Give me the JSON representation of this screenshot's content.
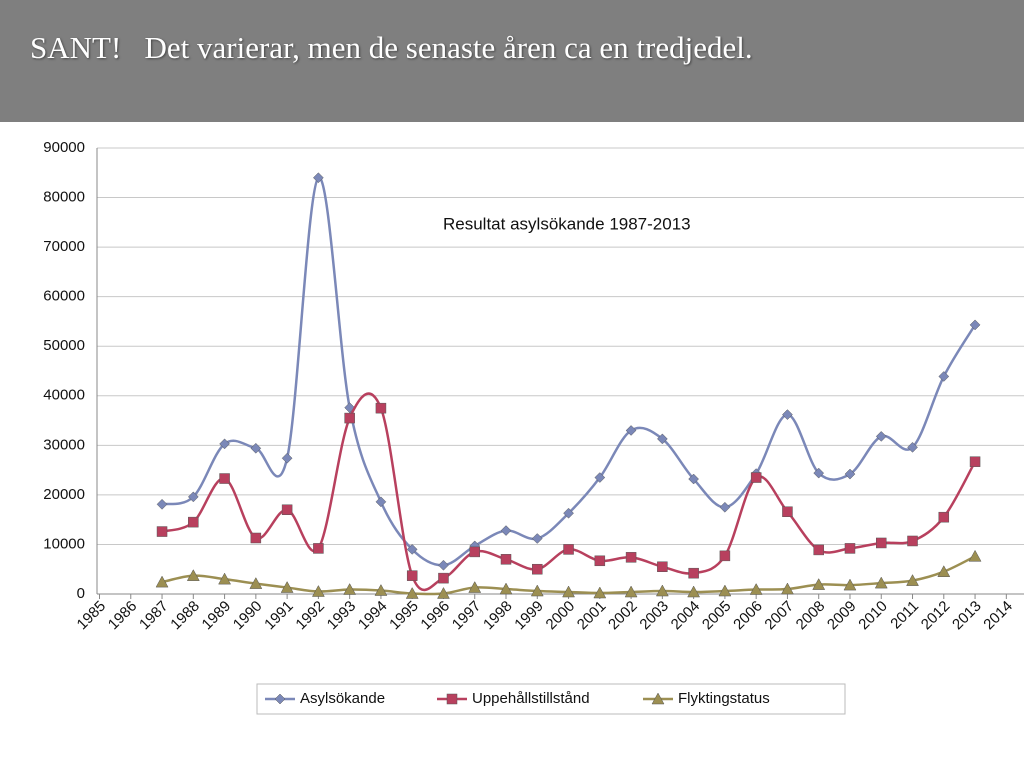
{
  "header": {
    "title": "SANT!   Det varierar, men de senaste åren ca en tredjedel."
  },
  "chart_data": {
    "type": "line",
    "title": "Resultat asylsökande 1987-2013",
    "categories": [
      "1985",
      "1986",
      "1987",
      "1988",
      "1989",
      "1990",
      "1991",
      "1992",
      "1993",
      "1994",
      "1995",
      "1996",
      "1997",
      "1998",
      "1999",
      "2000",
      "2001",
      "2002",
      "2003",
      "2004",
      "2005",
      "2006",
      "2007",
      "2008",
      "2009",
      "2010",
      "2011",
      "2012",
      "2013",
      "2014"
    ],
    "series": [
      {
        "name": "Asylsökande",
        "color": "#7b88b8",
        "marker": "diamond",
        "values": [
          null,
          null,
          18100,
          19600,
          30300,
          29400,
          27400,
          84000,
          37600,
          18600,
          9000,
          5800,
          9700,
          12800,
          11200,
          16300,
          23500,
          33000,
          31300,
          23200,
          17500,
          24300,
          36200,
          24400,
          24200,
          31800,
          29600,
          43900,
          54300,
          null
        ]
      },
      {
        "name": "Uppehållstillstånd",
        "color": "#b8405e",
        "marker": "square",
        "values": [
          null,
          null,
          12600,
          14500,
          23300,
          11300,
          17000,
          9200,
          35500,
          37500,
          3700,
          3200,
          8500,
          7000,
          5000,
          9000,
          6700,
          7400,
          5500,
          4200,
          7700,
          23500,
          16600,
          8900,
          9200,
          10300,
          10700,
          15500,
          26700,
          null
        ]
      },
      {
        "name": "Flyktingstatus",
        "color": "#9c8f52",
        "marker": "triangle",
        "values": [
          null,
          null,
          2400,
          3700,
          3000,
          2100,
          1300,
          500,
          900,
          700,
          100,
          100,
          1300,
          1000,
          600,
          400,
          200,
          400,
          600,
          400,
          600,
          900,
          1000,
          1900,
          1800,
          2200,
          2700,
          4500,
          7600,
          null
        ]
      }
    ],
    "ylim": [
      0,
      90000
    ],
    "yticks": [
      0,
      10000,
      20000,
      30000,
      40000,
      50000,
      60000,
      70000,
      80000,
      90000
    ],
    "grid": true
  }
}
